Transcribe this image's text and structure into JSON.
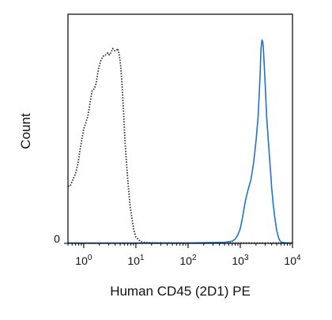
{
  "chart_data": {
    "type": "line",
    "title": "",
    "xlabel": "Human CD45 (2D1) PE",
    "ylabel": "Count",
    "x_scale": "log",
    "xlim": [
      0.5,
      10000
    ],
    "ylim": [
      0,
      100
    ],
    "grid": false,
    "legend": "none",
    "x_ticks": [
      {
        "value": 1,
        "base": "10",
        "exp": "0"
      },
      {
        "value": 10,
        "base": "10",
        "exp": "1"
      },
      {
        "value": 100,
        "base": "10",
        "exp": "2"
      },
      {
        "value": 1000,
        "base": "10",
        "exp": "3"
      },
      {
        "value": 10000,
        "base": "10",
        "exp": "4"
      }
    ],
    "y_ticks": [
      {
        "value": 0,
        "label": "0"
      }
    ],
    "series": [
      {
        "color": "#333333",
        "dash": "dotted",
        "x": [
          0.5,
          0.55,
          0.62,
          0.7,
          0.78,
          0.85,
          0.92,
          1.0,
          1.1,
          1.2,
          1.32,
          1.45,
          1.6,
          1.75,
          1.9,
          2.1,
          2.3,
          2.5,
          2.7,
          2.9,
          3.1,
          3.3,
          3.6,
          3.9,
          4.2,
          4.5,
          4.8,
          5.1,
          5.4,
          5.8,
          6.2,
          6.7,
          7.2,
          7.8,
          8.5,
          9.2,
          10,
          11,
          12,
          14,
          20,
          50,
          1000,
          10000
        ],
        "values": [
          27,
          27,
          30,
          33,
          38,
          44,
          49,
          54,
          57,
          60,
          66,
          72,
          73,
          76,
          82,
          86,
          88,
          89,
          89,
          90,
          89,
          90,
          92,
          91,
          91,
          92,
          89,
          84,
          76,
          62,
          48,
          36,
          26,
          17,
          11,
          6,
          3,
          2,
          1,
          0.5,
          0.3,
          0.2,
          0.2,
          0.2
        ]
      },
      {
        "color": "#1f73c9",
        "dash": "solid",
        "x": [
          0.5,
          100,
          500,
          700,
          800,
          900,
          1000,
          1100,
          1250,
          1400,
          1600,
          1800,
          2000,
          2200,
          2400,
          2500,
          2600,
          2700,
          2800,
          3000,
          3200,
          3500,
          3800,
          4000,
          4300,
          4600,
          5000,
          5500,
          6000,
          7000,
          10000
        ],
        "values": [
          0.2,
          0.2,
          0.5,
          1,
          2,
          4,
          7,
          12,
          20,
          25,
          30,
          38,
          48,
          60,
          80,
          92,
          96,
          95,
          90,
          75,
          60,
          46,
          34,
          26,
          18,
          12,
          6,
          2,
          0.6,
          0.3,
          0.2
        ]
      }
    ]
  }
}
